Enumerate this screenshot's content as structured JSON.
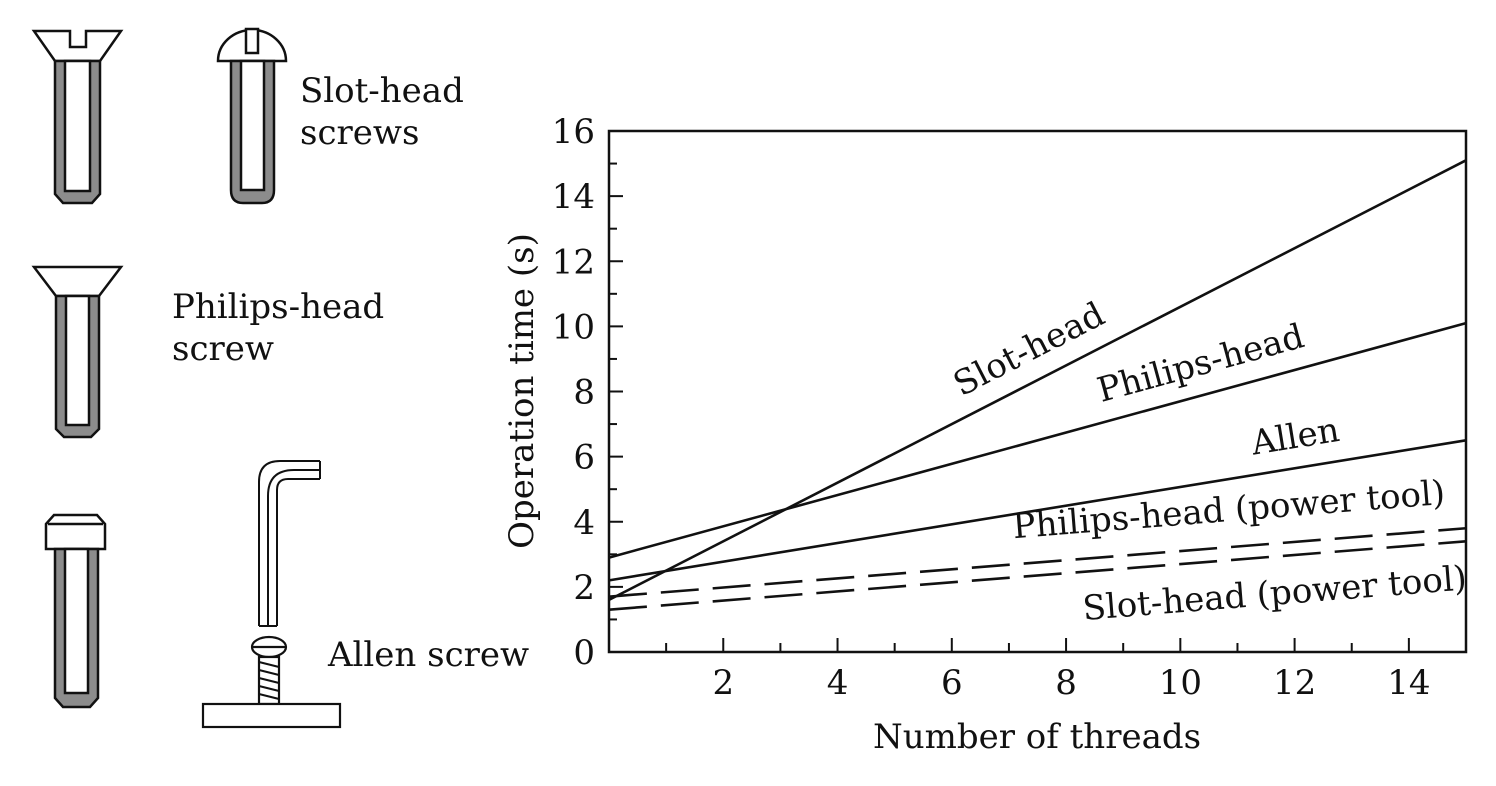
{
  "screws": {
    "slot_head_label_1": "Slot-head",
    "slot_head_label_2": "screws",
    "philips_head_label_1": "Philips-head",
    "philips_head_label_2": "screw",
    "allen_label": "Allen screw"
  },
  "chart_data": {
    "type": "line",
    "title": "",
    "xlabel": "Number of threads",
    "ylabel": "Operation time (s)",
    "xlim": [
      0,
      15
    ],
    "ylim": [
      0,
      16
    ],
    "xticks": [
      2,
      4,
      6,
      8,
      10,
      12,
      14
    ],
    "yticks": [
      0,
      2,
      4,
      6,
      8,
      10,
      12,
      14,
      16
    ],
    "grid": false,
    "legend": "none (series labelled inline)",
    "series": [
      {
        "name": "Slot-head",
        "style": "solid",
        "x": [
          0,
          15
        ],
        "y": [
          1.6,
          15.1
        ]
      },
      {
        "name": "Philips-head",
        "style": "solid",
        "x": [
          0,
          15
        ],
        "y": [
          2.9,
          10.1
        ]
      },
      {
        "name": "Allen",
        "style": "solid",
        "x": [
          0,
          15
        ],
        "y": [
          2.2,
          6.5
        ]
      },
      {
        "name": "Philips-head (power tool)",
        "style": "dashed",
        "x": [
          0,
          15
        ],
        "y": [
          1.7,
          3.8
        ]
      },
      {
        "name": "Slot-head (power tool)",
        "style": "dashed",
        "x": [
          0,
          15
        ],
        "y": [
          1.3,
          3.4
        ]
      }
    ]
  }
}
